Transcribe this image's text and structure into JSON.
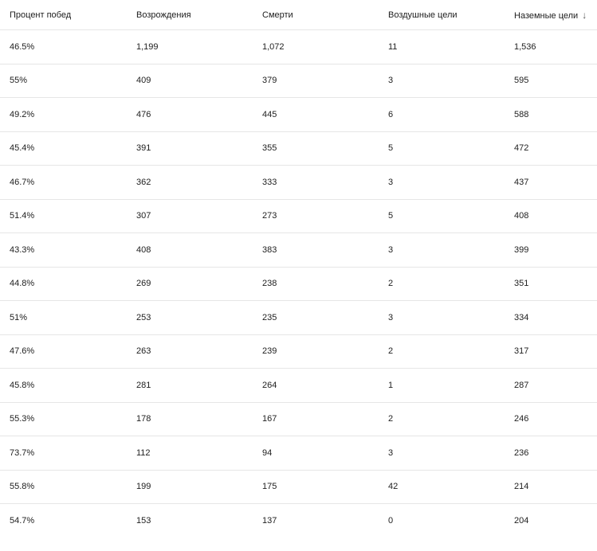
{
  "table": {
    "columns": [
      "Процент побед",
      "Возрождения",
      "Смерти",
      "Воздушные цели",
      "Наземные цели"
    ],
    "sort": {
      "column": 4,
      "direction": "descending",
      "icon": "arrow-down-icon"
    },
    "rows": [
      [
        "46.5%",
        "1,199",
        "1,072",
        "11",
        "1,536"
      ],
      [
        "55%",
        "409",
        "379",
        "3",
        "595"
      ],
      [
        "49.2%",
        "476",
        "445",
        "6",
        "588"
      ],
      [
        "45.4%",
        "391",
        "355",
        "5",
        "472"
      ],
      [
        "46.7%",
        "362",
        "333",
        "3",
        "437"
      ],
      [
        "51.4%",
        "307",
        "273",
        "5",
        "408"
      ],
      [
        "43.3%",
        "408",
        "383",
        "3",
        "399"
      ],
      [
        "44.8%",
        "269",
        "238",
        "2",
        "351"
      ],
      [
        "51%",
        "253",
        "235",
        "3",
        "334"
      ],
      [
        "47.6%",
        "263",
        "239",
        "2",
        "317"
      ],
      [
        "45.8%",
        "281",
        "264",
        "1",
        "287"
      ],
      [
        "55.3%",
        "178",
        "167",
        "2",
        "246"
      ],
      [
        "73.7%",
        "112",
        "94",
        "3",
        "236"
      ],
      [
        "55.8%",
        "199",
        "175",
        "42",
        "214"
      ],
      [
        "54.7%",
        "153",
        "137",
        "0",
        "204"
      ]
    ]
  }
}
